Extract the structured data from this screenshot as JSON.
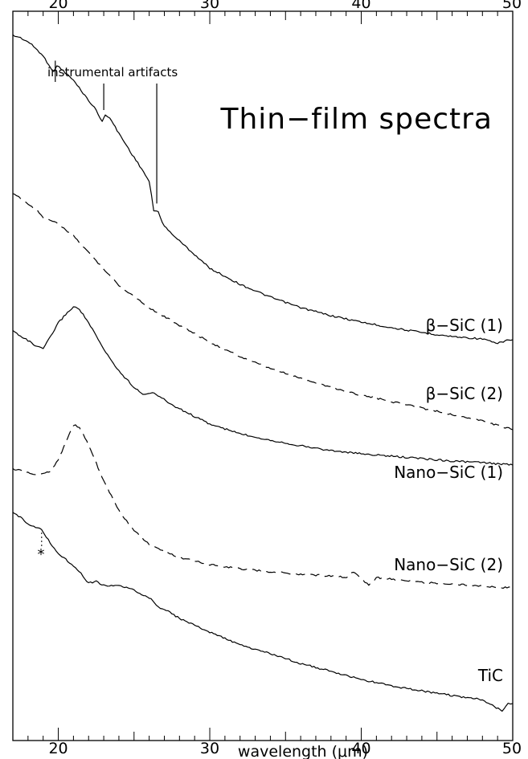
{
  "chart_data": {
    "type": "line",
    "title": "Thin−film spectra",
    "xlabel": "wavelength (μm)",
    "xlim": [
      17,
      50
    ],
    "xticks_major": [
      20,
      30,
      40,
      50
    ],
    "xtick_labels_bottom": [
      "20",
      "30",
      "40",
      "50"
    ],
    "xtick_labels_top": [
      "20",
      "30",
      "40",
      "50"
    ],
    "ylabel": "",
    "series": [
      {
        "name": "β−SiC (1)",
        "style": "solid",
        "points": [
          [
            17,
            30
          ],
          [
            17.5,
            33
          ],
          [
            18,
            38
          ],
          [
            18.5,
            46
          ],
          [
            19,
            56
          ],
          [
            19.5,
            70
          ],
          [
            19.7,
            76
          ],
          [
            19.9,
            67
          ],
          [
            20.2,
            72
          ],
          [
            21,
            86
          ],
          [
            22,
            111
          ],
          [
            22.5,
            123
          ],
          [
            22.9,
            138
          ],
          [
            23.1,
            128
          ],
          [
            23.4,
            133
          ],
          [
            24,
            152
          ],
          [
            25,
            182
          ],
          [
            25.5,
            196
          ],
          [
            26,
            212
          ],
          [
            26.3,
            248
          ],
          [
            26.6,
            250
          ],
          [
            27,
            268
          ],
          [
            28,
            286
          ],
          [
            29,
            303
          ],
          [
            30,
            320
          ],
          [
            32,
            340
          ],
          [
            34,
            356
          ],
          [
            36,
            369
          ],
          [
            38,
            379
          ],
          [
            40,
            387
          ],
          [
            42,
            394
          ],
          [
            44,
            400
          ],
          [
            46,
            405
          ],
          [
            48,
            408
          ],
          [
            49,
            414
          ],
          [
            49.5,
            410
          ],
          [
            50,
            409
          ]
        ]
      },
      {
        "name": "β−SiC (2)",
        "style": "dashed",
        "points": [
          [
            17,
            228
          ],
          [
            17.5,
            232
          ],
          [
            18,
            240
          ],
          [
            18.6,
            248
          ],
          [
            19,
            256
          ],
          [
            20,
            265
          ],
          [
            21,
            280
          ],
          [
            22,
            300
          ],
          [
            23,
            321
          ],
          [
            24,
            341
          ],
          [
            26,
            369
          ],
          [
            28,
            391
          ],
          [
            30,
            412
          ],
          [
            32,
            430
          ],
          [
            34,
            445
          ],
          [
            36,
            457
          ],
          [
            38,
            468
          ],
          [
            40,
            478
          ],
          [
            42,
            486
          ],
          [
            44,
            494
          ],
          [
            46,
            502
          ],
          [
            48,
            510
          ],
          [
            50,
            521
          ]
        ]
      },
      {
        "name": "Nano−SiC (1)",
        "style": "solid",
        "points": [
          [
            17,
            398
          ],
          [
            17.5,
            404
          ],
          [
            18,
            410
          ],
          [
            18.6,
            418
          ],
          [
            19,
            420
          ],
          [
            19.5,
            405
          ],
          [
            20,
            388
          ],
          [
            20.6,
            375
          ],
          [
            21,
            368
          ],
          [
            21.4,
            371
          ],
          [
            22,
            388
          ],
          [
            23,
            421
          ],
          [
            24,
            448
          ],
          [
            25,
            468
          ],
          [
            25.7,
            478
          ],
          [
            26.2,
            474
          ],
          [
            26.7,
            480
          ],
          [
            27.5,
            490
          ],
          [
            28,
            495
          ],
          [
            30,
            514
          ],
          [
            32,
            526
          ],
          [
            34,
            534
          ],
          [
            36,
            541
          ],
          [
            38,
            547
          ],
          [
            40,
            551
          ],
          [
            42,
            554
          ],
          [
            44,
            557
          ],
          [
            46,
            560
          ],
          [
            48,
            562
          ],
          [
            50,
            565
          ]
        ]
      },
      {
        "name": "Nano−SiC (2)",
        "style": "dashed",
        "points": [
          [
            17,
            570
          ],
          [
            17.5,
            572
          ],
          [
            18,
            575
          ],
          [
            18.6,
            577
          ],
          [
            19,
            576
          ],
          [
            19.5,
            572
          ],
          [
            20,
            558
          ],
          [
            20.6,
            532
          ],
          [
            21,
            515
          ],
          [
            21.4,
            518
          ],
          [
            22,
            540
          ],
          [
            23,
            585
          ],
          [
            24,
            622
          ],
          [
            25,
            646
          ],
          [
            26,
            664
          ],
          [
            27,
            673
          ],
          [
            28,
            680
          ],
          [
            30,
            689
          ],
          [
            32,
            694
          ],
          [
            34,
            698
          ],
          [
            36,
            701
          ],
          [
            38,
            703
          ],
          [
            39,
            705
          ],
          [
            39.5,
            698
          ],
          [
            40,
            706
          ],
          [
            40.5,
            715
          ],
          [
            41,
            705
          ],
          [
            42,
            707
          ],
          [
            44,
            711
          ],
          [
            46,
            713
          ],
          [
            48,
            716
          ],
          [
            50,
            718
          ]
        ]
      },
      {
        "name": "TiC",
        "style": "solid",
        "points": [
          [
            17,
            625
          ],
          [
            17.5,
            630
          ],
          [
            18,
            638
          ],
          [
            18.5,
            642
          ],
          [
            18.9,
            645
          ],
          [
            19.2,
            655
          ],
          [
            19.6,
            665
          ],
          [
            20,
            675
          ],
          [
            21,
            690
          ],
          [
            21.5,
            700
          ],
          [
            22,
            712
          ],
          [
            22.5,
            710
          ],
          [
            23,
            715
          ],
          [
            24,
            715
          ],
          [
            25,
            721
          ],
          [
            26,
            730
          ],
          [
            26.6,
            742
          ],
          [
            27,
            744
          ],
          [
            28,
            756
          ],
          [
            30,
            773
          ],
          [
            32,
            789
          ],
          [
            34,
            800
          ],
          [
            36,
            812
          ],
          [
            38,
            822
          ],
          [
            40,
            832
          ],
          [
            42,
            840
          ],
          [
            44,
            846
          ],
          [
            46,
            852
          ],
          [
            48,
            857
          ],
          [
            49.3,
            871
          ],
          [
            49.7,
            861
          ],
          [
            50,
            862
          ]
        ]
      }
    ],
    "annotations": [
      {
        "text": "instrumental artifacts",
        "markers_at_x": [
          19.8,
          23.0,
          26.5
        ]
      },
      {
        "text": "*",
        "at_x": 18.9
      }
    ]
  }
}
